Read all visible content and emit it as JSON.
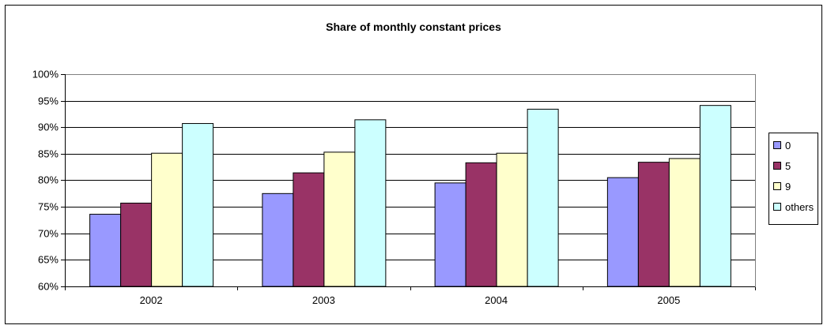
{
  "chart_data": {
    "type": "bar",
    "title": "Share of monthly constant prices",
    "xlabel": "",
    "ylabel": "",
    "categories": [
      "2002",
      "2003",
      "2004",
      "2005"
    ],
    "ylim": [
      0.6,
      1.0
    ],
    "yticks": [
      0.6,
      0.65,
      0.7,
      0.75,
      0.8,
      0.85,
      0.9,
      0.95,
      1.0
    ],
    "ytick_labels": [
      "60%",
      "65%",
      "70%",
      "75%",
      "80%",
      "85%",
      "90%",
      "95%",
      "100%"
    ],
    "grid": true,
    "legend_position": "right",
    "series": [
      {
        "name": "0",
        "color": "#9999ff",
        "values": [
          0.736,
          0.775,
          0.795,
          0.805
        ]
      },
      {
        "name": "5",
        "color": "#993366",
        "values": [
          0.757,
          0.814,
          0.833,
          0.834
        ]
      },
      {
        "name": "9",
        "color": "#ffffcc",
        "values": [
          0.851,
          0.853,
          0.851,
          0.841
        ]
      },
      {
        "name": "others",
        "color": "#ccffff",
        "values": [
          0.907,
          0.914,
          0.934,
          0.941
        ]
      }
    ]
  }
}
